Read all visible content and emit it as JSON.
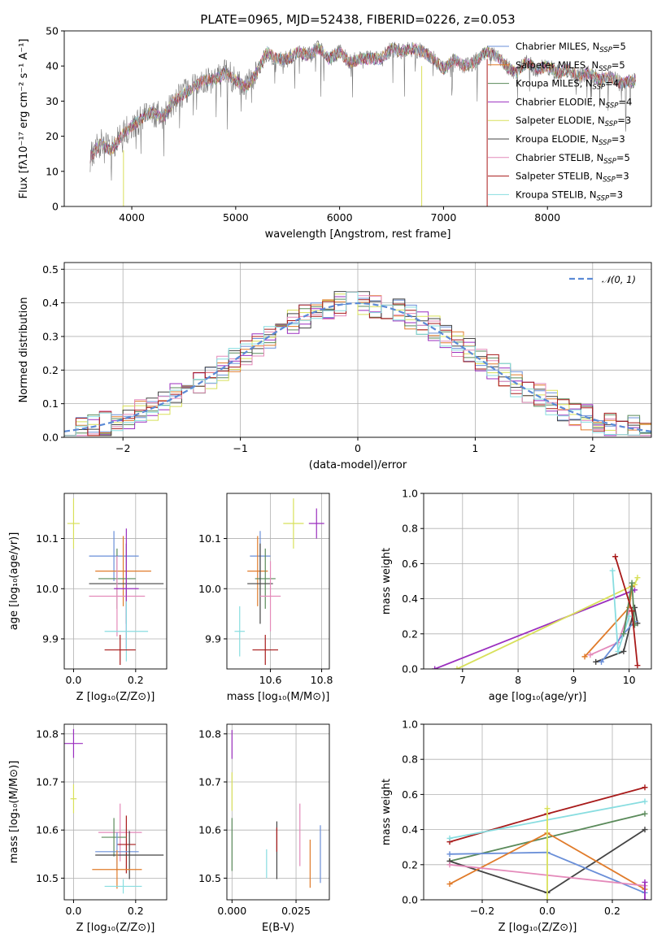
{
  "colors": [
    "#6a8fd8",
    "#e07b2a",
    "#5a8a5a",
    "#9b2fbf",
    "#d8e05a",
    "#444444",
    "#e48aba",
    "#a81a1a",
    "#88dde0"
  ],
  "chart_data": [
    {
      "id": "spectrum",
      "type": "line",
      "title": "PLATE=0965, MJD=52438, FIBERID=0226, z=0.053",
      "xlabel": "wavelength [Angstrom, rest frame]",
      "ylabel": "Flux [fλ10⁻¹⁷ erg cm⁻² s⁻¹ A⁻¹]",
      "xlim": [
        3350,
        9000
      ],
      "ylim": [
        0,
        50
      ],
      "xticks": [
        4000,
        5000,
        6000,
        7000,
        8000
      ],
      "yticks": [
        0,
        10,
        20,
        30,
        40,
        50
      ],
      "legend": [
        "Chabrier MILES, N_SSP=5",
        "Salpeter MILES, N_SSP=5",
        "Kroupa MILES, N_SSP=4",
        "Chabrier ELODIE, N_SSP=4",
        "Salpeter ELODIE, N_SSP=3",
        "Kroupa ELODIE, N_SSP=3",
        "Chabrier STELIB, N_SSP=5",
        "Salpeter STELIB, N_SSP=3",
        "Kroupa STELIB, N_SSP=3"
      ],
      "legend_loc": "upper right",
      "spectrum_keypoints": [
        [
          3600,
          14
        ],
        [
          3700,
          18
        ],
        [
          3800,
          16
        ],
        [
          3900,
          20
        ],
        [
          4000,
          23
        ],
        [
          4100,
          25
        ],
        [
          4200,
          27
        ],
        [
          4300,
          25
        ],
        [
          4400,
          30
        ],
        [
          4500,
          32
        ],
        [
          4600,
          34
        ],
        [
          4700,
          36
        ],
        [
          4800,
          36
        ],
        [
          4900,
          38
        ],
        [
          5000,
          36
        ],
        [
          5100,
          34
        ],
        [
          5200,
          38
        ],
        [
          5300,
          44
        ],
        [
          5400,
          42
        ],
        [
          5500,
          42
        ],
        [
          5600,
          44
        ],
        [
          5700,
          43
        ],
        [
          5800,
          45
        ],
        [
          5900,
          42
        ],
        [
          6000,
          44
        ],
        [
          6100,
          41
        ],
        [
          6200,
          42
        ],
        [
          6300,
          42
        ],
        [
          6400,
          42
        ],
        [
          6500,
          45
        ],
        [
          6600,
          44
        ],
        [
          6700,
          45
        ],
        [
          6800,
          44
        ],
        [
          6900,
          42
        ],
        [
          7000,
          39
        ],
        [
          7100,
          42
        ],
        [
          7200,
          40
        ],
        [
          7300,
          41
        ],
        [
          7400,
          44
        ],
        [
          7500,
          43
        ],
        [
          7600,
          40
        ],
        [
          7700,
          38
        ],
        [
          7800,
          41
        ],
        [
          7900,
          39
        ],
        [
          8000,
          40
        ],
        [
          8100,
          38
        ],
        [
          8200,
          39
        ],
        [
          8300,
          37
        ],
        [
          8400,
          38
        ],
        [
          8500,
          36
        ],
        [
          8600,
          37
        ],
        [
          8700,
          35
        ],
        [
          8850,
          36
        ]
      ],
      "grid": false
    },
    {
      "id": "residual_hist",
      "type": "histogram",
      "xlabel": "(data-model)/error",
      "ylabel": "Normed distribution",
      "xlim": [
        -2.5,
        2.5
      ],
      "ylim": [
        0,
        0.52
      ],
      "xticks": [
        -2,
        -1,
        0,
        1,
        2
      ],
      "yticks": [
        0.0,
        0.1,
        0.2,
        0.3,
        0.4,
        0.5
      ],
      "legend": [
        "𝒩(0, 1)"
      ],
      "legend_loc": "upper right",
      "bins": [
        -2.5,
        -2.4,
        -2.3,
        -2.2,
        -2.1,
        -2.0,
        -1.9,
        -1.8,
        -1.7,
        -1.6,
        -1.5,
        -1.4,
        -1.3,
        -1.2,
        -1.1,
        -1.0,
        -0.9,
        -0.8,
        -0.7,
        -0.6,
        -0.5,
        -0.4,
        -0.3,
        -0.2,
        -0.1,
        0.0,
        0.1,
        0.2,
        0.3,
        0.4,
        0.5,
        0.6,
        0.7,
        0.8,
        0.9,
        1.0,
        1.1,
        1.2,
        1.3,
        1.4,
        1.5,
        1.6,
        1.7,
        1.8,
        1.9,
        2.0,
        2.1,
        2.2,
        2.3,
        2.4,
        2.5
      ],
      "grid": true
    },
    {
      "id": "age_vs_Z",
      "type": "errorbar",
      "xlabel": "Z [log₁₀(Z/Z⊙)]",
      "ylabel": "age  [log₁₀(age/yr)]",
      "xlim": [
        -0.03,
        0.3
      ],
      "ylim": [
        9.84,
        10.19
      ],
      "xticks": [
        0.0,
        0.2
      ],
      "yticks": [
        9.9,
        10.0,
        10.1
      ],
      "points": [
        {
          "x": 0.0,
          "y": 10.13,
          "xerr": 0.02,
          "yerr": 0.05,
          "c": 4
        },
        {
          "x": 0.13,
          "y": 10.065,
          "xerr": 0.08,
          "yerr": 0.05,
          "c": 0
        },
        {
          "x": 0.16,
          "y": 10.035,
          "xerr": 0.09,
          "yerr": 0.07,
          "c": 1
        },
        {
          "x": 0.14,
          "y": 10.02,
          "xerr": 0.06,
          "yerr": 0.06,
          "c": 2
        },
        {
          "x": 0.17,
          "y": 10.01,
          "xerr": 0.12,
          "yerr": 0.08,
          "c": 5
        },
        {
          "x": 0.14,
          "y": 9.985,
          "xerr": 0.09,
          "yerr": 0.08,
          "c": 6
        },
        {
          "x": 0.17,
          "y": 10.0,
          "xerr": 0.04,
          "yerr": 0.12,
          "c": 3
        },
        {
          "x": 0.17,
          "y": 9.915,
          "xerr": 0.07,
          "yerr": 0.06,
          "c": 8
        },
        {
          "x": 0.15,
          "y": 9.878,
          "xerr": 0.05,
          "yerr": 0.03,
          "c": 7
        }
      ]
    },
    {
      "id": "age_vs_mass",
      "type": "errorbar",
      "xlabel": "mass [log₁₀(M/M⊙)]",
      "ylabel": "",
      "xlim": [
        10.43,
        10.83
      ],
      "ylim": [
        9.84,
        10.19
      ],
      "xticks": [
        10.6,
        10.8
      ],
      "yticks": [
        9.9,
        10.0,
        10.1
      ],
      "points": [
        {
          "x": 10.69,
          "y": 10.13,
          "xerr": 0.04,
          "yerr": 0.05,
          "c": 4
        },
        {
          "x": 10.78,
          "y": 10.13,
          "xerr": 0.03,
          "yerr": 0.03,
          "c": 3
        },
        {
          "x": 10.56,
          "y": 10.065,
          "xerr": 0.04,
          "yerr": 0.05,
          "c": 0
        },
        {
          "x": 10.55,
          "y": 10.035,
          "xerr": 0.04,
          "yerr": 0.07,
          "c": 1
        },
        {
          "x": 10.58,
          "y": 10.02,
          "xerr": 0.04,
          "yerr": 0.06,
          "c": 2
        },
        {
          "x": 10.56,
          "y": 10.01,
          "xerr": 0.05,
          "yerr": 0.08,
          "c": 5
        },
        {
          "x": 10.6,
          "y": 9.985,
          "xerr": 0.04,
          "yerr": 0.07,
          "c": 6
        },
        {
          "x": 10.48,
          "y": 9.915,
          "xerr": 0.02,
          "yerr": 0.05,
          "c": 8
        },
        {
          "x": 10.58,
          "y": 9.878,
          "xerr": 0.05,
          "yerr": 0.03,
          "c": 7
        }
      ]
    },
    {
      "id": "weight_vs_age",
      "type": "line",
      "xlabel": "age  [log₁₀(age/yr)]",
      "ylabel": "mass weight",
      "xlim": [
        6.3,
        10.4
      ],
      "ylim": [
        0,
        1
      ],
      "xticks": [
        7,
        8,
        9,
        10
      ],
      "yticks": [
        0.0,
        0.2,
        0.4,
        0.6,
        0.8,
        1.0
      ],
      "series": [
        {
          "c": 3,
          "x": [
            6.5,
            10.1
          ],
          "y": [
            0.0,
            0.45
          ]
        },
        {
          "c": 4,
          "x": [
            6.9,
            10.1,
            10.15
          ],
          "y": [
            0.0,
            0.48,
            0.52
          ]
        },
        {
          "c": 1,
          "x": [
            9.2,
            10.0,
            10.05
          ],
          "y": [
            0.07,
            0.35,
            0.47
          ]
        },
        {
          "c": 6,
          "x": [
            9.3,
            9.8,
            10.0
          ],
          "y": [
            0.08,
            0.15,
            0.33
          ]
        },
        {
          "c": 5,
          "x": [
            9.4,
            9.9,
            10.1,
            10.15
          ],
          "y": [
            0.04,
            0.1,
            0.35,
            0.26
          ]
        },
        {
          "c": 0,
          "x": [
            9.5,
            9.9,
            10.1
          ],
          "y": [
            0.04,
            0.2,
            0.27
          ]
        },
        {
          "c": 8,
          "x": [
            9.7,
            9.8,
            10.0
          ],
          "y": [
            0.56,
            0.1,
            0.3
          ]
        },
        {
          "c": 2,
          "x": [
            9.9,
            10.05,
            10.1
          ],
          "y": [
            0.2,
            0.49,
            0.25
          ]
        },
        {
          "c": 7,
          "x": [
            9.75,
            10.05,
            10.15
          ],
          "y": [
            0.64,
            0.33,
            0.02
          ]
        }
      ]
    },
    {
      "id": "mass_vs_Z",
      "type": "errorbar",
      "xlabel": "Z [log₁₀(Z/Z⊙)]",
      "ylabel": "mass [log₁₀(M/M⊙)]",
      "xlim": [
        -0.03,
        0.3
      ],
      "ylim": [
        10.455,
        10.82
      ],
      "xticks": [
        0.0,
        0.2
      ],
      "yticks": [
        10.5,
        10.6,
        10.7,
        10.8
      ],
      "points": [
        {
          "x": 0.0,
          "y": 10.78,
          "xerr": 0.03,
          "yerr": 0.03,
          "c": 3
        },
        {
          "x": 0.0,
          "y": 10.665,
          "xerr": 0.01,
          "yerr": 0.03,
          "c": 4
        },
        {
          "x": 0.15,
          "y": 10.595,
          "xerr": 0.07,
          "yerr": 0.06,
          "c": 6
        },
        {
          "x": 0.17,
          "y": 10.57,
          "xerr": 0.03,
          "yerr": 0.06,
          "c": 7
        },
        {
          "x": 0.13,
          "y": 10.585,
          "xerr": 0.04,
          "yerr": 0.04,
          "c": 2
        },
        {
          "x": 0.14,
          "y": 10.555,
          "xerr": 0.07,
          "yerr": 0.04,
          "c": 0
        },
        {
          "x": 0.18,
          "y": 10.548,
          "xerr": 0.11,
          "yerr": 0.05,
          "c": 5
        },
        {
          "x": 0.14,
          "y": 10.518,
          "xerr": 0.08,
          "yerr": 0.04,
          "c": 1
        },
        {
          "x": 0.16,
          "y": 10.483,
          "xerr": 0.06,
          "yerr": 0.015,
          "c": 8
        }
      ]
    },
    {
      "id": "mass_vs_ebv",
      "type": "errorbar",
      "xlabel": "E(B-V)",
      "ylabel": "",
      "xlim": [
        -0.002,
        0.038
      ],
      "ylim": [
        10.455,
        10.82
      ],
      "xticks": [
        0.0,
        0.025
      ],
      "yticks": [
        10.5,
        10.6,
        10.7,
        10.8
      ],
      "points": [
        {
          "x": 0.0,
          "y": 10.778,
          "xerr": 0,
          "yerr": 0.03,
          "c": 3
        },
        {
          "x": 0.0,
          "y": 10.68,
          "xerr": 0,
          "yerr": 0.04,
          "c": 4
        },
        {
          "x": 0.0,
          "y": 10.57,
          "xerr": 0,
          "yerr": 0.055,
          "c": 2
        },
        {
          "x": 0.0135,
          "y": 10.53,
          "xerr": 0,
          "yerr": 0.03,
          "c": 8
        },
        {
          "x": 0.0175,
          "y": 10.558,
          "xerr": 0,
          "yerr": 0.06,
          "c": 5
        },
        {
          "x": 0.0175,
          "y": 10.58,
          "xerr": 0,
          "yerr": 0.025,
          "c": 7
        },
        {
          "x": 0.0265,
          "y": 10.59,
          "xerr": 0,
          "yerr": 0.065,
          "c": 6
        },
        {
          "x": 0.0305,
          "y": 10.53,
          "xerr": 0,
          "yerr": 0.05,
          "c": 1
        },
        {
          "x": 0.0345,
          "y": 10.55,
          "xerr": 0,
          "yerr": 0.06,
          "c": 0
        }
      ]
    },
    {
      "id": "weight_vs_Z",
      "type": "line",
      "xlabel": "Z [log₁₀(Z/Z⊙)]",
      "ylabel": "mass weight",
      "xlim": [
        -0.38,
        0.32
      ],
      "ylim": [
        0,
        1
      ],
      "xticks": [
        -0.2,
        0.0,
        0.2
      ],
      "yticks": [
        0.0,
        0.2,
        0.4,
        0.6,
        0.8,
        1.0
      ],
      "series": [
        {
          "c": 7,
          "x": [
            -0.3,
            0.0,
            0.3
          ],
          "y": [
            0.33,
            0.49,
            0.64
          ]
        },
        {
          "c": 8,
          "x": [
            -0.3,
            0.3
          ],
          "y": [
            0.35,
            0.56
          ]
        },
        {
          "c": 2,
          "x": [
            -0.3,
            0.3
          ],
          "y": [
            0.22,
            0.49
          ]
        },
        {
          "c": 5,
          "x": [
            -0.3,
            0.0,
            0.3
          ],
          "y": [
            0.22,
            0.04,
            0.4
          ]
        },
        {
          "c": 0,
          "x": [
            -0.3,
            0.0,
            0.3
          ],
          "y": [
            0.26,
            0.27,
            0.04
          ]
        },
        {
          "c": 1,
          "x": [
            -0.3,
            0.0,
            0.3
          ],
          "y": [
            0.09,
            0.38,
            0.06
          ]
        },
        {
          "c": 6,
          "x": [
            -0.3,
            0.3
          ],
          "y": [
            0.2,
            0.08
          ]
        },
        {
          "c": 4,
          "x": [
            0.0,
            0.0
          ],
          "y": [
            0.0,
            0.52
          ]
        },
        {
          "c": 3,
          "x": [
            0.3,
            0.3
          ],
          "y": [
            0.0,
            0.1
          ]
        }
      ]
    }
  ]
}
